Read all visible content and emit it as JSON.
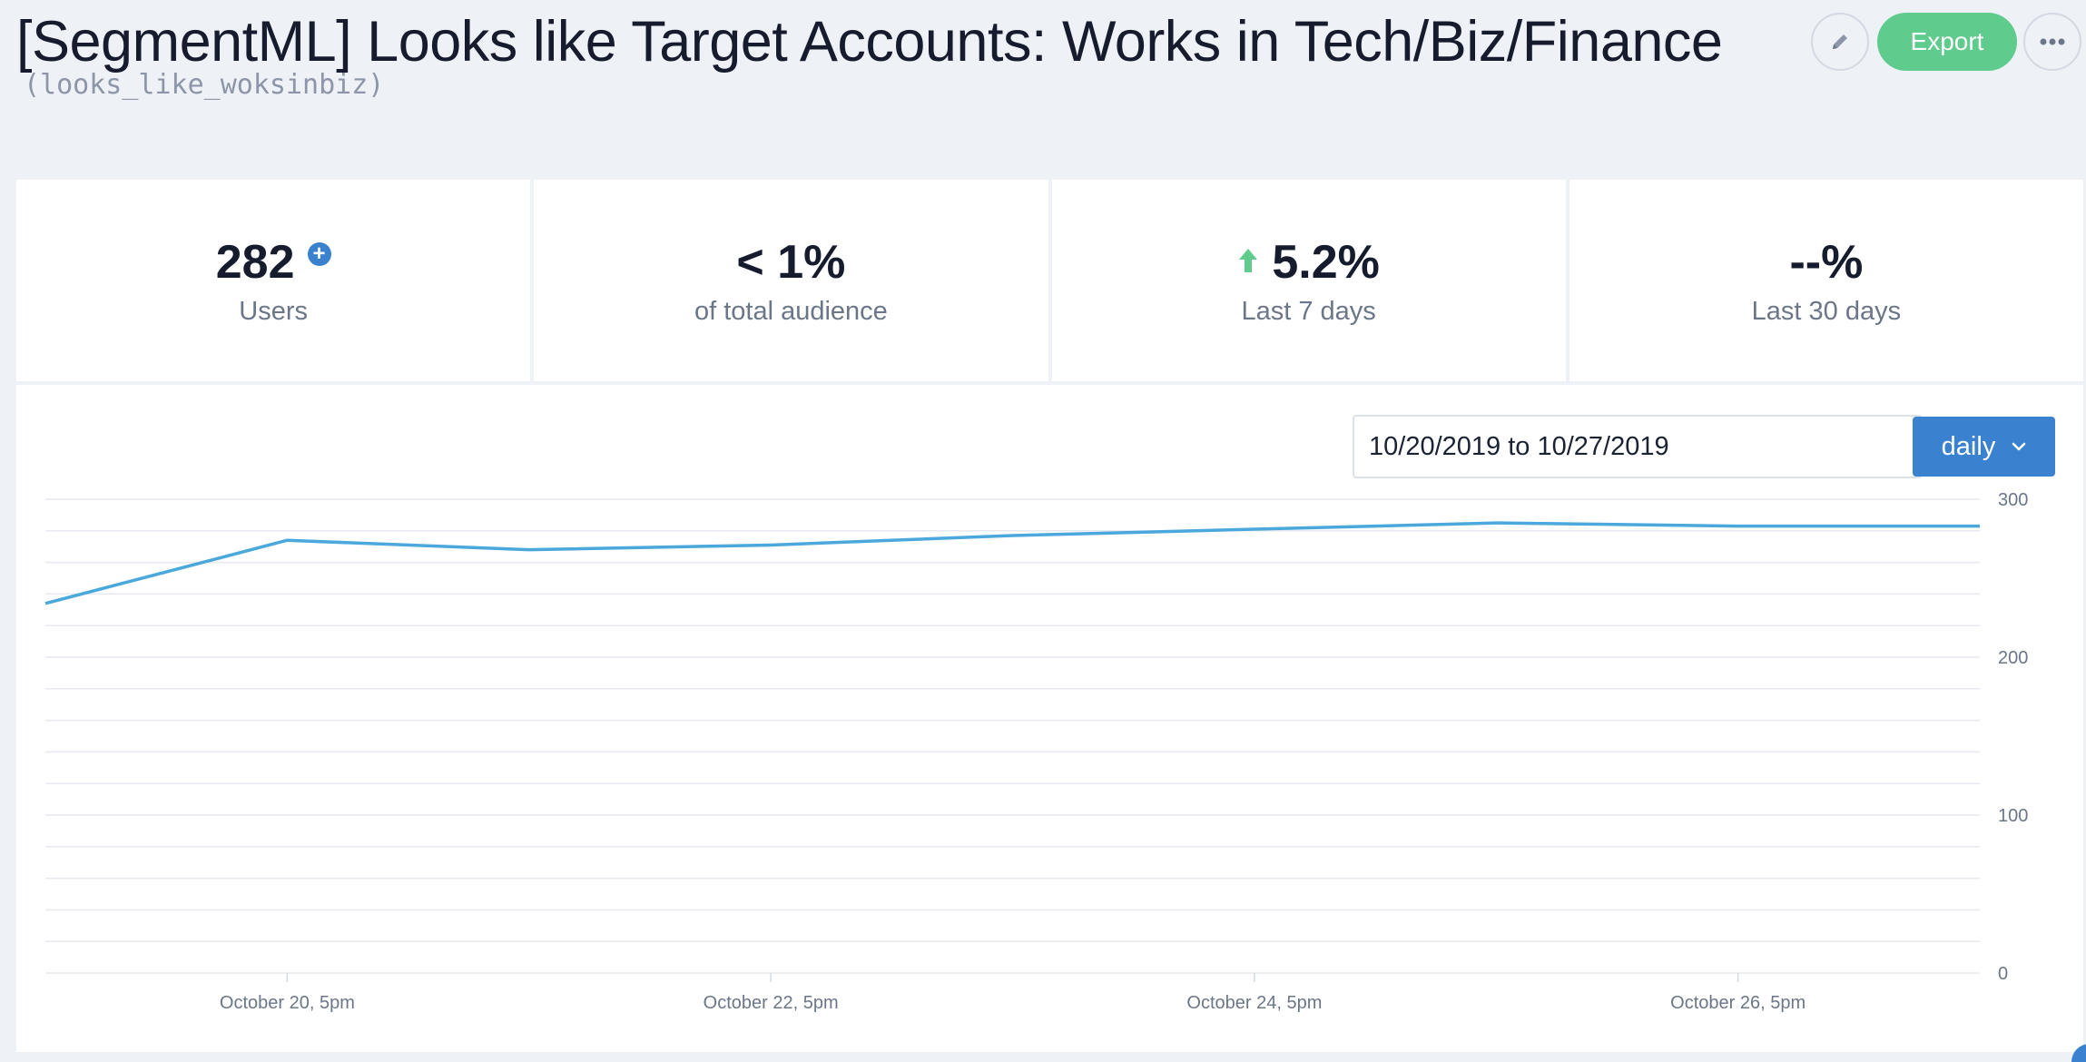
{
  "header": {
    "title": "[SegmentML] Looks like Target Accounts: Works in Tech/Biz/Finance",
    "subtitle": "(looks_like_woksinbiz)",
    "edit_icon": "pencil-icon",
    "export_label": "Export",
    "more_icon": "more-horizontal-icon"
  },
  "stats": [
    {
      "value": "282",
      "label": "Users",
      "icon": "plus-circle-icon"
    },
    {
      "value": "< 1%",
      "label": "of total audience"
    },
    {
      "value": "5.2%",
      "label": "Last 7 days",
      "icon": "arrow-up-icon"
    },
    {
      "value": "--%",
      "label": "Last 30 days"
    }
  ],
  "controls": {
    "date_range": "10/20/2019 to 10/27/2019",
    "interval": "daily",
    "interval_icon": "chevron-down-icon"
  },
  "colors": {
    "accent": "#3a82cf",
    "export": "#5fcb8c",
    "line": "#4aa8dc",
    "up_arrow": "#5fcb8c"
  },
  "chart_data": {
    "type": "line",
    "title": "",
    "xlabel": "",
    "ylabel": "",
    "ylim": [
      0,
      300
    ],
    "yticks": [
      0,
      100,
      200,
      300
    ],
    "xtick_labels": [
      "October 20, 5pm",
      "October 22, 5pm",
      "October 24, 5pm",
      "October 26, 5pm"
    ],
    "xtick_positions_days": [
      1,
      3,
      5,
      7
    ],
    "grid": true,
    "series": [
      {
        "name": "Users",
        "x_days": [
          0,
          1,
          2,
          3,
          4,
          5,
          6,
          7,
          8
        ],
        "values": [
          234,
          274,
          268,
          271,
          277,
          281,
          285,
          283,
          283
        ]
      }
    ]
  }
}
